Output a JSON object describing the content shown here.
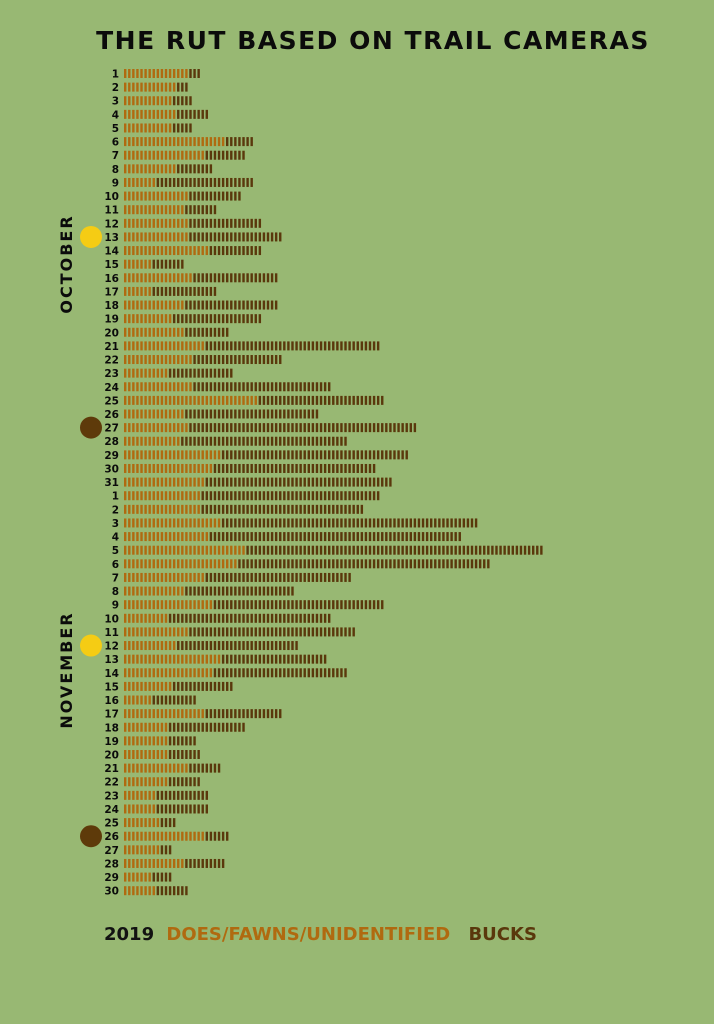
{
  "chart_data": {
    "type": "bar",
    "orientation": "horizontal",
    "stacked": true,
    "title": "THE RUT BASED ON TRAIL CAMERAS",
    "year": "2019",
    "months": [
      {
        "name": "OCTOBER",
        "days": [
          1,
          2,
          3,
          4,
          5,
          6,
          7,
          8,
          9,
          10,
          11,
          12,
          13,
          14,
          15,
          16,
          17,
          18,
          19,
          20,
          21,
          22,
          23,
          24,
          25,
          26,
          27,
          28,
          29,
          30,
          31
        ]
      },
      {
        "name": "NOVEMBER",
        "days": [
          1,
          2,
          3,
          4,
          5,
          6,
          7,
          8,
          9,
          10,
          11,
          12,
          13,
          14,
          15,
          16,
          17,
          18,
          19,
          20,
          21,
          22,
          23,
          24,
          25,
          26,
          27,
          28,
          29,
          30
        ]
      }
    ],
    "categories": [
      "Oct 1",
      "Oct 2",
      "Oct 3",
      "Oct 4",
      "Oct 5",
      "Oct 6",
      "Oct 7",
      "Oct 8",
      "Oct 9",
      "Oct 10",
      "Oct 11",
      "Oct 12",
      "Oct 13",
      "Oct 14",
      "Oct 15",
      "Oct 16",
      "Oct 17",
      "Oct 18",
      "Oct 19",
      "Oct 20",
      "Oct 21",
      "Oct 22",
      "Oct 23",
      "Oct 24",
      "Oct 25",
      "Oct 26",
      "Oct 27",
      "Oct 28",
      "Oct 29",
      "Oct 30",
      "Oct 31",
      "Nov 1",
      "Nov 2",
      "Nov 3",
      "Nov 4",
      "Nov 5",
      "Nov 6",
      "Nov 7",
      "Nov 8",
      "Nov 9",
      "Nov 10",
      "Nov 11",
      "Nov 12",
      "Nov 13",
      "Nov 14",
      "Nov 15",
      "Nov 16",
      "Nov 17",
      "Nov 18",
      "Nov 19",
      "Nov 20",
      "Nov 21",
      "Nov 22",
      "Nov 23",
      "Nov 24",
      "Nov 25",
      "Nov 26",
      "Nov 27",
      "Nov 28",
      "Nov 29",
      "Nov 30"
    ],
    "series": [
      {
        "name": "DOES/FAWNS/UNIDENTIFIED",
        "color": "#b06a10",
        "values": [
          16,
          13,
          12,
          13,
          12,
          25,
          20,
          13,
          8,
          16,
          15,
          16,
          16,
          21,
          7,
          17,
          7,
          15,
          12,
          15,
          20,
          17,
          11,
          17,
          33,
          15,
          16,
          14,
          24,
          22,
          20,
          19,
          19,
          24,
          21,
          30,
          28,
          20,
          15,
          22,
          11,
          16,
          13,
          24,
          22,
          12,
          7,
          20,
          11,
          11,
          11,
          16,
          11,
          8,
          8,
          9,
          20,
          9,
          15,
          7,
          8
        ]
      },
      {
        "name": "BUCKS",
        "color": "#5a380c",
        "values": [
          3,
          3,
          5,
          8,
          5,
          7,
          10,
          9,
          24,
          13,
          8,
          18,
          23,
          13,
          8,
          21,
          16,
          23,
          22,
          11,
          43,
          22,
          16,
          34,
          31,
          33,
          56,
          41,
          46,
          40,
          46,
          44,
          40,
          63,
          62,
          73,
          62,
          36,
          27,
          42,
          40,
          41,
          30,
          26,
          33,
          15,
          11,
          19,
          19,
          7,
          8,
          8,
          8,
          13,
          13,
          4,
          6,
          3,
          10,
          5,
          8
        ]
      }
    ],
    "legend": [
      "2019",
      "DOES/FAWNS/UNIDENTIFIED",
      "BUCKS"
    ],
    "moon_phases": [
      {
        "date": "Oct 13",
        "phase": "full",
        "color": "#f5cc14"
      },
      {
        "date": "Oct 27",
        "phase": "new",
        "color": "#5e3a0a"
      },
      {
        "date": "Nov 12",
        "phase": "full",
        "color": "#f5cc14"
      },
      {
        "date": "Nov 26",
        "phase": "new",
        "color": "#5e3a0a"
      }
    ]
  }
}
